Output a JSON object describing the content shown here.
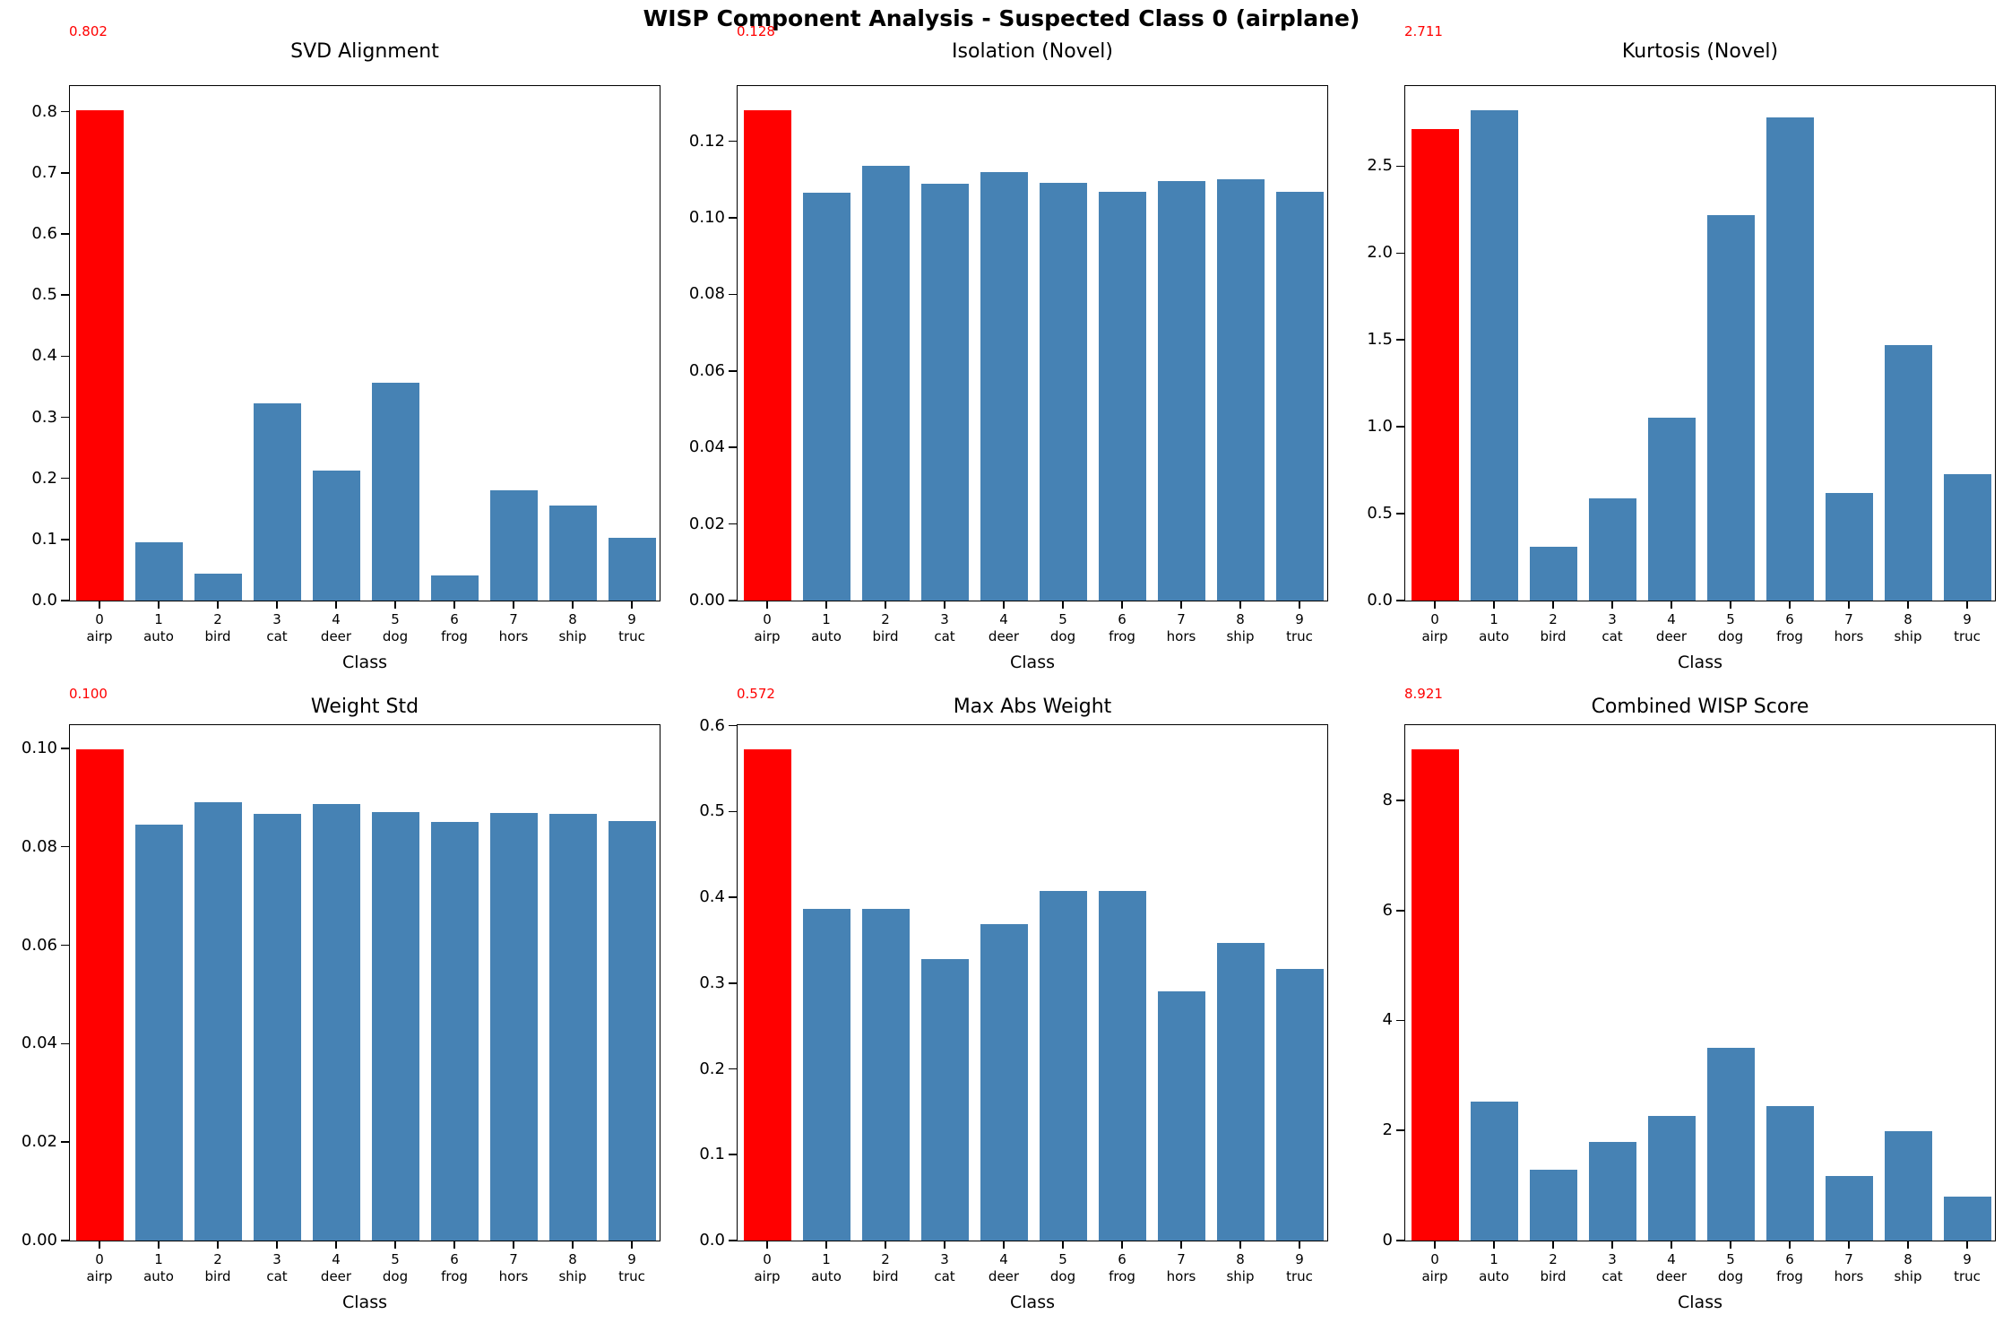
{
  "figure": {
    "suptitle": "WISP Component Analysis - Suspected Class 0 (airplane)"
  },
  "chart_data": {
    "shared": {
      "type": "bar",
      "xlabel": "Class",
      "grid": false,
      "legend": "none",
      "highlight_index": 0,
      "highlight_color": "#ff0000",
      "bar_color": "#4682b4",
      "categories": [
        {
          "id": "0",
          "name": "airp"
        },
        {
          "id": "1",
          "name": "auto"
        },
        {
          "id": "2",
          "name": "bird"
        },
        {
          "id": "3",
          "name": "cat"
        },
        {
          "id": "4",
          "name": "deer"
        },
        {
          "id": "5",
          "name": "dog"
        },
        {
          "id": "6",
          "name": "frog"
        },
        {
          "id": "7",
          "name": "hors"
        },
        {
          "id": "8",
          "name": "ship"
        },
        {
          "id": "9",
          "name": "truc"
        }
      ]
    },
    "charts": [
      {
        "type": "bar",
        "title": "SVD Alignment",
        "annotation": "0.802",
        "ylim": [
          0,
          0.842
        ],
        "yticks": [
          {
            "v": 0.0,
            "label": "0.0"
          },
          {
            "v": 0.1,
            "label": "0.1"
          },
          {
            "v": 0.2,
            "label": "0.2"
          },
          {
            "v": 0.3,
            "label": "0.3"
          },
          {
            "v": 0.4,
            "label": "0.4"
          },
          {
            "v": 0.5,
            "label": "0.5"
          },
          {
            "v": 0.6,
            "label": "0.6"
          },
          {
            "v": 0.7,
            "label": "0.7"
          },
          {
            "v": 0.8,
            "label": "0.8"
          }
        ],
        "values": [
          0.802,
          0.096,
          0.044,
          0.323,
          0.212,
          0.356,
          0.041,
          0.18,
          0.155,
          0.103
        ]
      },
      {
        "type": "bar",
        "title": "Isolation (Novel)",
        "annotation": "0.128",
        "ylim": [
          0,
          0.1344
        ],
        "yticks": [
          {
            "v": 0.0,
            "label": "0.00"
          },
          {
            "v": 0.02,
            "label": "0.02"
          },
          {
            "v": 0.04,
            "label": "0.04"
          },
          {
            "v": 0.06,
            "label": "0.06"
          },
          {
            "v": 0.08,
            "label": "0.08"
          },
          {
            "v": 0.1,
            "label": "0.10"
          },
          {
            "v": 0.12,
            "label": "0.12"
          }
        ],
        "values": [
          0.128,
          0.1065,
          0.1135,
          0.1088,
          0.112,
          0.109,
          0.1068,
          0.1095,
          0.11,
          0.1068
        ]
      },
      {
        "type": "bar",
        "title": "Kurtosis (Novel)",
        "annotation": "2.711",
        "ylim": [
          0,
          2.961
        ],
        "yticks": [
          {
            "v": 0.0,
            "label": "0.0"
          },
          {
            "v": 0.5,
            "label": "0.5"
          },
          {
            "v": 1.0,
            "label": "1.0"
          },
          {
            "v": 1.5,
            "label": "1.5"
          },
          {
            "v": 2.0,
            "label": "2.0"
          },
          {
            "v": 2.5,
            "label": "2.5"
          }
        ],
        "values": [
          2.711,
          2.82,
          0.31,
          0.59,
          1.05,
          2.22,
          2.78,
          0.62,
          1.47,
          0.73
        ]
      },
      {
        "type": "bar",
        "title": "Weight Std",
        "annotation": "0.100",
        "ylim": [
          0,
          0.1047
        ],
        "yticks": [
          {
            "v": 0.0,
            "label": "0.00"
          },
          {
            "v": 0.02,
            "label": "0.02"
          },
          {
            "v": 0.04,
            "label": "0.04"
          },
          {
            "v": 0.06,
            "label": "0.06"
          },
          {
            "v": 0.08,
            "label": "0.08"
          },
          {
            "v": 0.1,
            "label": "0.10"
          }
        ],
        "values": [
          0.0997,
          0.0845,
          0.089,
          0.0866,
          0.0886,
          0.087,
          0.085,
          0.0868,
          0.0866,
          0.0852
        ]
      },
      {
        "type": "bar",
        "title": "Max Abs Weight",
        "annotation": "0.572",
        "ylim": [
          0,
          0.6006
        ],
        "yticks": [
          {
            "v": 0.0,
            "label": "0.0"
          },
          {
            "v": 0.1,
            "label": "0.1"
          },
          {
            "v": 0.2,
            "label": "0.2"
          },
          {
            "v": 0.3,
            "label": "0.3"
          },
          {
            "v": 0.4,
            "label": "0.4"
          },
          {
            "v": 0.5,
            "label": "0.5"
          },
          {
            "v": 0.6,
            "label": "0.6"
          }
        ],
        "values": [
          0.572,
          0.387,
          0.387,
          0.328,
          0.369,
          0.407,
          0.407,
          0.29,
          0.347,
          0.317
        ]
      },
      {
        "type": "bar",
        "title": "Combined WISP Score",
        "annotation": "8.921",
        "ylim": [
          0,
          9.367
        ],
        "yticks": [
          {
            "v": 0,
            "label": "0"
          },
          {
            "v": 2,
            "label": "2"
          },
          {
            "v": 4,
            "label": "4"
          },
          {
            "v": 6,
            "label": "6"
          },
          {
            "v": 8,
            "label": "8"
          }
        ],
        "values": [
          8.921,
          2.53,
          1.29,
          1.79,
          2.27,
          3.5,
          2.45,
          1.18,
          1.99,
          0.8
        ]
      }
    ]
  }
}
